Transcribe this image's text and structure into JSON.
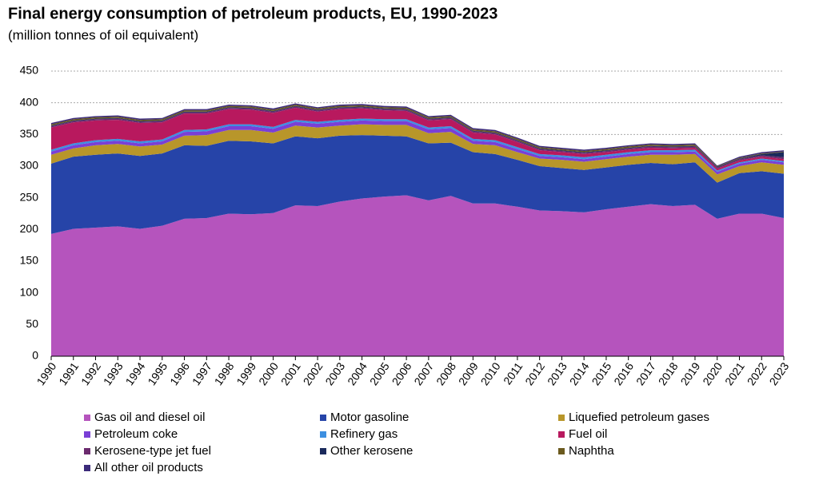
{
  "chart_data": {
    "type": "stacked_area",
    "title": "Final energy consumption of petroleum products, EU, 1990-2023",
    "subtitle": "(million  tonnes of oil equivalent)",
    "categories": [
      "1990",
      "1991",
      "1992",
      "1993",
      "1994",
      "1995",
      "1996",
      "1997",
      "1998",
      "1999",
      "2000",
      "2001",
      "2002",
      "2003",
      "2004",
      "2005",
      "2006",
      "2007",
      "2008",
      "2009",
      "2010",
      "2011",
      "2012",
      "2013",
      "2014",
      "2015",
      "2016",
      "2017",
      "2018",
      "2019",
      "2020",
      "2021",
      "2022",
      "2023"
    ],
    "ylim": [
      0,
      450
    ],
    "yticks": [
      0,
      50,
      100,
      150,
      200,
      250,
      300,
      350,
      400,
      450
    ],
    "grid": true,
    "series": [
      {
        "name": "Gas oil and diesel oil",
        "color": "#b554bd",
        "values": [
          193,
          201,
          203,
          205,
          201,
          206,
          217,
          218,
          225,
          224,
          226,
          238,
          237,
          244,
          249,
          252,
          254,
          246,
          253,
          241,
          241,
          236,
          230,
          229,
          227,
          232,
          236,
          240,
          237,
          239,
          217,
          225,
          225,
          218
        ]
      },
      {
        "name": "Motor gasoline",
        "color": "#2644a8",
        "values": [
          111,
          114,
          115,
          115,
          115,
          114,
          116,
          114,
          115,
          115,
          110,
          109,
          107,
          104,
          100,
          96,
          93,
          90,
          84,
          81,
          78,
          74,
          70,
          68,
          67,
          66,
          66,
          65,
          66,
          67,
          57,
          64,
          67,
          70
        ]
      },
      {
        "name": "Liquefied petroleum gases",
        "color": "#b8962a",
        "values": [
          14,
          13,
          15,
          15,
          15,
          14,
          15,
          17,
          17,
          18,
          17,
          17,
          17,
          16,
          17,
          17,
          18,
          16,
          17,
          13,
          14,
          12,
          12,
          13,
          13,
          13,
          13,
          13,
          15,
          13,
          13,
          11,
          14,
          14
        ]
      },
      {
        "name": "Petroleum coke",
        "color": "#7a3fd6",
        "values": [
          5,
          5,
          5,
          5,
          5,
          5,
          6,
          6,
          6,
          6,
          6,
          6,
          6,
          6,
          6,
          6,
          6,
          6,
          6,
          5,
          5,
          5,
          4,
          4,
          4,
          4,
          4,
          4,
          4,
          4,
          4,
          4,
          4,
          4
        ]
      },
      {
        "name": "Refinery gas",
        "color": "#3d8fe0",
        "values": [
          3,
          3,
          3,
          3,
          3,
          3,
          3,
          3,
          3,
          3,
          3,
          3,
          3,
          3,
          3,
          3,
          3,
          3,
          3,
          3,
          3,
          3,
          3,
          3,
          3,
          3,
          3,
          3,
          3,
          3,
          2,
          2,
          2,
          2
        ]
      },
      {
        "name": "Fuel oil",
        "color": "#b8195e",
        "values": [
          35,
          33,
          31,
          30,
          29,
          27,
          26,
          25,
          24,
          23,
          22,
          19,
          16,
          17,
          16,
          14,
          13,
          11,
          11,
          10,
          9,
          8,
          6,
          5,
          5,
          4,
          4,
          4,
          3,
          3,
          3,
          3,
          3,
          3
        ]
      },
      {
        "name": "Kerosene-type jet fuel",
        "color": "#6b2a6e",
        "values": [
          2,
          2,
          2,
          2,
          2,
          2,
          2,
          2,
          2,
          2,
          2,
          2,
          2,
          2,
          2,
          2,
          2,
          2,
          2,
          2,
          2,
          2,
          2,
          2,
          2,
          2,
          2,
          2,
          2,
          2,
          2,
          2,
          2,
          3
        ]
      },
      {
        "name": "Other kerosene",
        "color": "#1a2a5c",
        "values": [
          1,
          1,
          1,
          1,
          1,
          1,
          1,
          1,
          1,
          1,
          1,
          1,
          1,
          1,
          1,
          1,
          1,
          1,
          1,
          1,
          1,
          1,
          1,
          1,
          1,
          1,
          1,
          1,
          1,
          1,
          1,
          1,
          2,
          8
        ]
      },
      {
        "name": "Naphtha",
        "color": "#6b5a1e",
        "values": [
          2,
          2,
          2,
          2,
          2,
          2,
          2,
          2,
          2,
          2,
          2,
          2,
          2,
          2,
          2,
          2,
          2,
          2,
          2,
          2,
          2,
          2,
          2,
          2,
          2,
          2,
          2,
          2,
          2,
          2,
          1,
          1,
          1,
          1
        ]
      },
      {
        "name": "All other oil products",
        "color": "#3b2a7a",
        "values": [
          2,
          2,
          2,
          2,
          2,
          2,
          2,
          2,
          2,
          2,
          2,
          2,
          2,
          2,
          2,
          2,
          2,
          2,
          2,
          2,
          2,
          2,
          2,
          2,
          2,
          2,
          2,
          2,
          2,
          2,
          1,
          2,
          2,
          2
        ]
      }
    ]
  }
}
